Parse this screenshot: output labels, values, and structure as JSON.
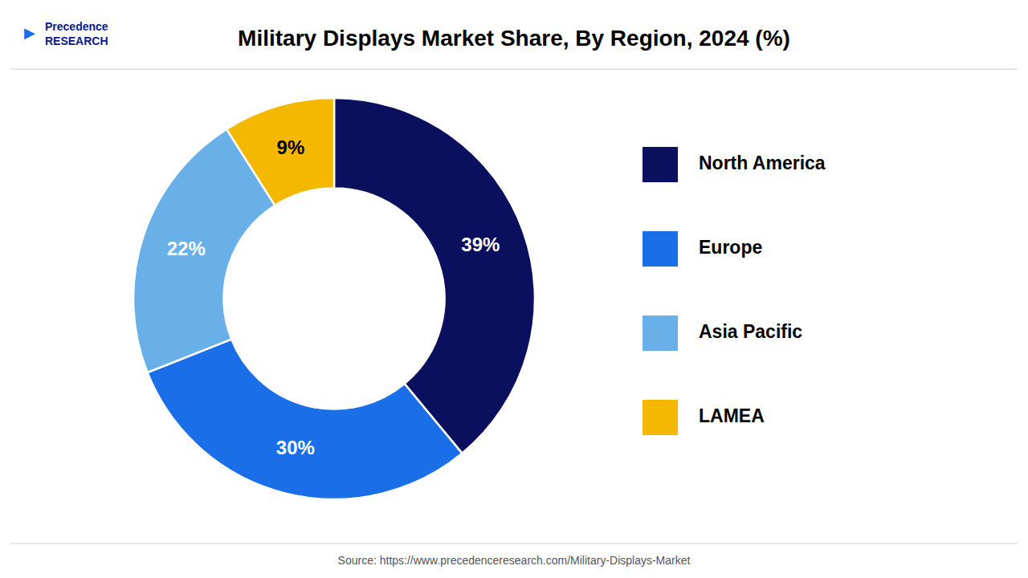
{
  "chart_data": {
    "type": "donut",
    "title": "Military Displays Market Share, By Region, 2024 (%)",
    "categories": [
      "North America",
      "Europe",
      "Asia Pacific",
      "LAMEA"
    ],
    "values": [
      39,
      30,
      22,
      9
    ],
    "value_labels": [
      "39%",
      "30%",
      "22%",
      "9%"
    ],
    "data_labels": true,
    "colors": [
      "#0a0f5e",
      "#1a6fe8",
      "#6ab0e8",
      "#f5b800"
    ],
    "legend": "right",
    "source": "Source: https://www.precedenceresearch.com/Military-Displays-Market",
    "annotations": [
      "▶",
      "Precedence",
      "RESEARCH"
    ]
  }
}
